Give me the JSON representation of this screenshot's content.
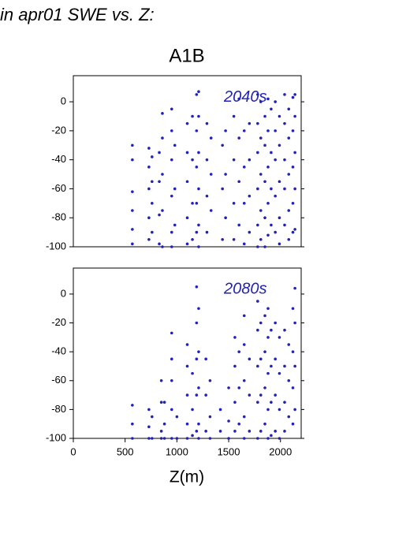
{
  "header": {
    "title": "in apr01 SWE vs. Z:"
  },
  "chart_data": [
    {
      "type": "scatter",
      "title": "A1B",
      "annotation": "2040s",
      "color": "#2222bb",
      "xlim": [
        0,
        2200
      ],
      "ylim": [
        -100,
        18
      ],
      "yticks": [
        0,
        -20,
        -40,
        -60,
        -80,
        -100
      ],
      "x": [
        570,
        570,
        570,
        570,
        570,
        570,
        730,
        730,
        730,
        730,
        730,
        760,
        760,
        760,
        760,
        830,
        830,
        830,
        830,
        860,
        860,
        860,
        860,
        860,
        950,
        950,
        950,
        950,
        950,
        950,
        980,
        980,
        980,
        1100,
        1100,
        1100,
        1100,
        1100,
        1150,
        1150,
        1150,
        1150,
        1190,
        1190,
        1190,
        1190,
        1190,
        1210,
        1210,
        1210,
        1210,
        1210,
        1210,
        1290,
        1290,
        1290,
        1290,
        1330,
        1330,
        1330,
        1440,
        1440,
        1440,
        1470,
        1470,
        1470,
        1550,
        1550,
        1550,
        1550,
        1600,
        1600,
        1600,
        1600,
        1650,
        1650,
        1650,
        1650,
        1700,
        1700,
        1700,
        1700,
        1780,
        1780,
        1780,
        1780,
        1780,
        1780,
        1810,
        1810,
        1810,
        1810,
        1810,
        1850,
        1850,
        1850,
        1850,
        1850,
        1880,
        1880,
        1880,
        1880,
        1880,
        1910,
        1910,
        1910,
        1910,
        1950,
        1950,
        1950,
        1950,
        1950,
        1990,
        1990,
        1990,
        1990,
        1990,
        2040,
        2040,
        2040,
        2040,
        2040,
        2080,
        2080,
        2080,
        2080,
        2080,
        2120,
        2120,
        2120,
        2120,
        2120,
        2140,
        2140,
        2140,
        2140,
        2140
      ],
      "values": [
        -30,
        -40,
        -62,
        -75,
        -88,
        -98,
        -32,
        -45,
        -60,
        -80,
        -95,
        -38,
        -55,
        -70,
        -90,
        -35,
        -55,
        -78,
        -98,
        -8,
        -25,
        -50,
        -75,
        -100,
        -5,
        -20,
        -40,
        -65,
        -90,
        -100,
        -30,
        -60,
        -85,
        -15,
        -35,
        -55,
        -80,
        -98,
        -10,
        -40,
        -70,
        -95,
        5,
        -20,
        -45,
        -70,
        -90,
        7,
        -10,
        -35,
        -60,
        -85,
        -100,
        -15,
        -40,
        -65,
        -90,
        -25,
        -50,
        -75,
        -30,
        -60,
        -95,
        -20,
        -50,
        -80,
        -10,
        -40,
        -70,
        -95,
        2,
        -25,
        -55,
        -85,
        -20,
        -45,
        -70,
        -98,
        -15,
        -40,
        -65,
        -90,
        5,
        -15,
        -35,
        -60,
        -85,
        -100,
        0,
        -25,
        -50,
        -75,
        -95,
        -10,
        -30,
        -55,
        -80,
        -100,
        2,
        -20,
        -45,
        -70,
        -92,
        -5,
        -35,
        -60,
        -85,
        0,
        -20,
        -40,
        -65,
        -90,
        -10,
        -30,
        -55,
        -80,
        -98,
        5,
        -15,
        -40,
        -60,
        -85,
        -5,
        -25,
        -50,
        -75,
        -95,
        3,
        -20,
        -45,
        -70,
        -90,
        5,
        -10,
        -35,
        -60,
        -88
      ]
    },
    {
      "type": "scatter",
      "annotation": "2080s",
      "color": "#2222bb",
      "xlabel": "Z(m)",
      "xlim": [
        0,
        2200
      ],
      "ylim": [
        -100,
        18
      ],
      "xticks": [
        0,
        500,
        1000,
        1500,
        2000
      ],
      "yticks": [
        0,
        -20,
        -40,
        -60,
        -80,
        -100
      ],
      "x": [
        570,
        570,
        570,
        730,
        730,
        730,
        760,
        760,
        850,
        850,
        850,
        850,
        880,
        880,
        880,
        950,
        950,
        950,
        950,
        950,
        1000,
        1000,
        1100,
        1100,
        1100,
        1100,
        1100,
        1150,
        1150,
        1150,
        1190,
        1190,
        1190,
        1190,
        1190,
        1210,
        1210,
        1210,
        1210,
        1210,
        1280,
        1280,
        1280,
        1320,
        1320,
        1320,
        1420,
        1420,
        1500,
        1500,
        1500,
        1560,
        1560,
        1560,
        1560,
        1600,
        1600,
        1600,
        1650,
        1650,
        1650,
        1650,
        1650,
        1700,
        1700,
        1700,
        1780,
        1780,
        1780,
        1780,
        1780,
        1810,
        1810,
        1810,
        1810,
        1850,
        1850,
        1850,
        1850,
        1880,
        1880,
        1880,
        1880,
        1880,
        1910,
        1910,
        1910,
        1910,
        1950,
        1950,
        1950,
        1950,
        1990,
        1990,
        1990,
        1990,
        2040,
        2040,
        2040,
        2040,
        2080,
        2080,
        2080,
        2120,
        2120,
        2120,
        2120,
        2140,
        2140,
        2140,
        2140
      ],
      "values": [
        -77,
        -90,
        -100,
        -80,
        -92,
        -100,
        -85,
        -100,
        -60,
        -75,
        -95,
        -100,
        -75,
        -90,
        -100,
        -27,
        -45,
        -60,
        -80,
        -100,
        -85,
        -100,
        -35,
        -50,
        -70,
        -90,
        -100,
        -55,
        -80,
        -98,
        5,
        -20,
        -45,
        -70,
        -95,
        -10,
        -40,
        -65,
        -90,
        -100,
        -45,
        -70,
        -95,
        -60,
        -85,
        -100,
        -80,
        -95,
        -65,
        -88,
        -100,
        -30,
        -50,
        -75,
        -95,
        -40,
        -65,
        -90,
        -15,
        -35,
        -60,
        -85,
        -100,
        -45,
        -70,
        -95,
        -5,
        -25,
        -50,
        -75,
        -100,
        -20,
        -45,
        -70,
        -95,
        -15,
        -40,
        -65,
        -90,
        -10,
        -30,
        -55,
        -80,
        -100,
        -25,
        -50,
        -75,
        -98,
        -20,
        -45,
        -70,
        -95,
        -30,
        -55,
        -80,
        -100,
        -25,
        -50,
        -75,
        -95,
        -35,
        -60,
        -85,
        -10,
        -40,
        -65,
        -90,
        4,
        -20,
        -50,
        -80
      ]
    }
  ]
}
